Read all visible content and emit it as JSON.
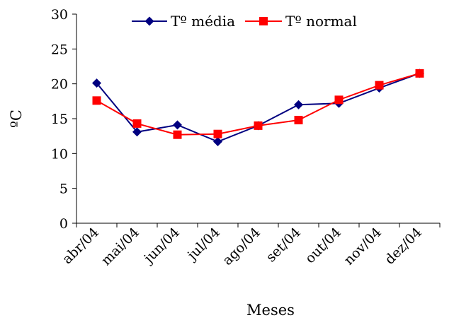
{
  "chart_data": {
    "type": "line",
    "categories": [
      "abr/04",
      "mai/04",
      "jun/04",
      "jul/04",
      "ago/04",
      "set/04",
      "out/04",
      "nov/04",
      "dez/04"
    ],
    "series": [
      {
        "name": "Tº média",
        "values": [
          20.1,
          13.1,
          14.1,
          11.7,
          14.0,
          17.0,
          17.2,
          19.4,
          21.5
        ],
        "color": "#000080",
        "marker": "diamond"
      },
      {
        "name": "Tº normal",
        "values": [
          17.6,
          14.3,
          12.7,
          12.8,
          14.0,
          14.8,
          17.7,
          19.8,
          21.5
        ],
        "color": "#ff0000",
        "marker": "square"
      }
    ],
    "xlabel": "Meses",
    "ylabel": "ºC",
    "ylim": [
      0,
      30
    ],
    "yticks": [
      0,
      5,
      10,
      15,
      20,
      25,
      30
    ],
    "grid": false,
    "legend_position": "top"
  }
}
